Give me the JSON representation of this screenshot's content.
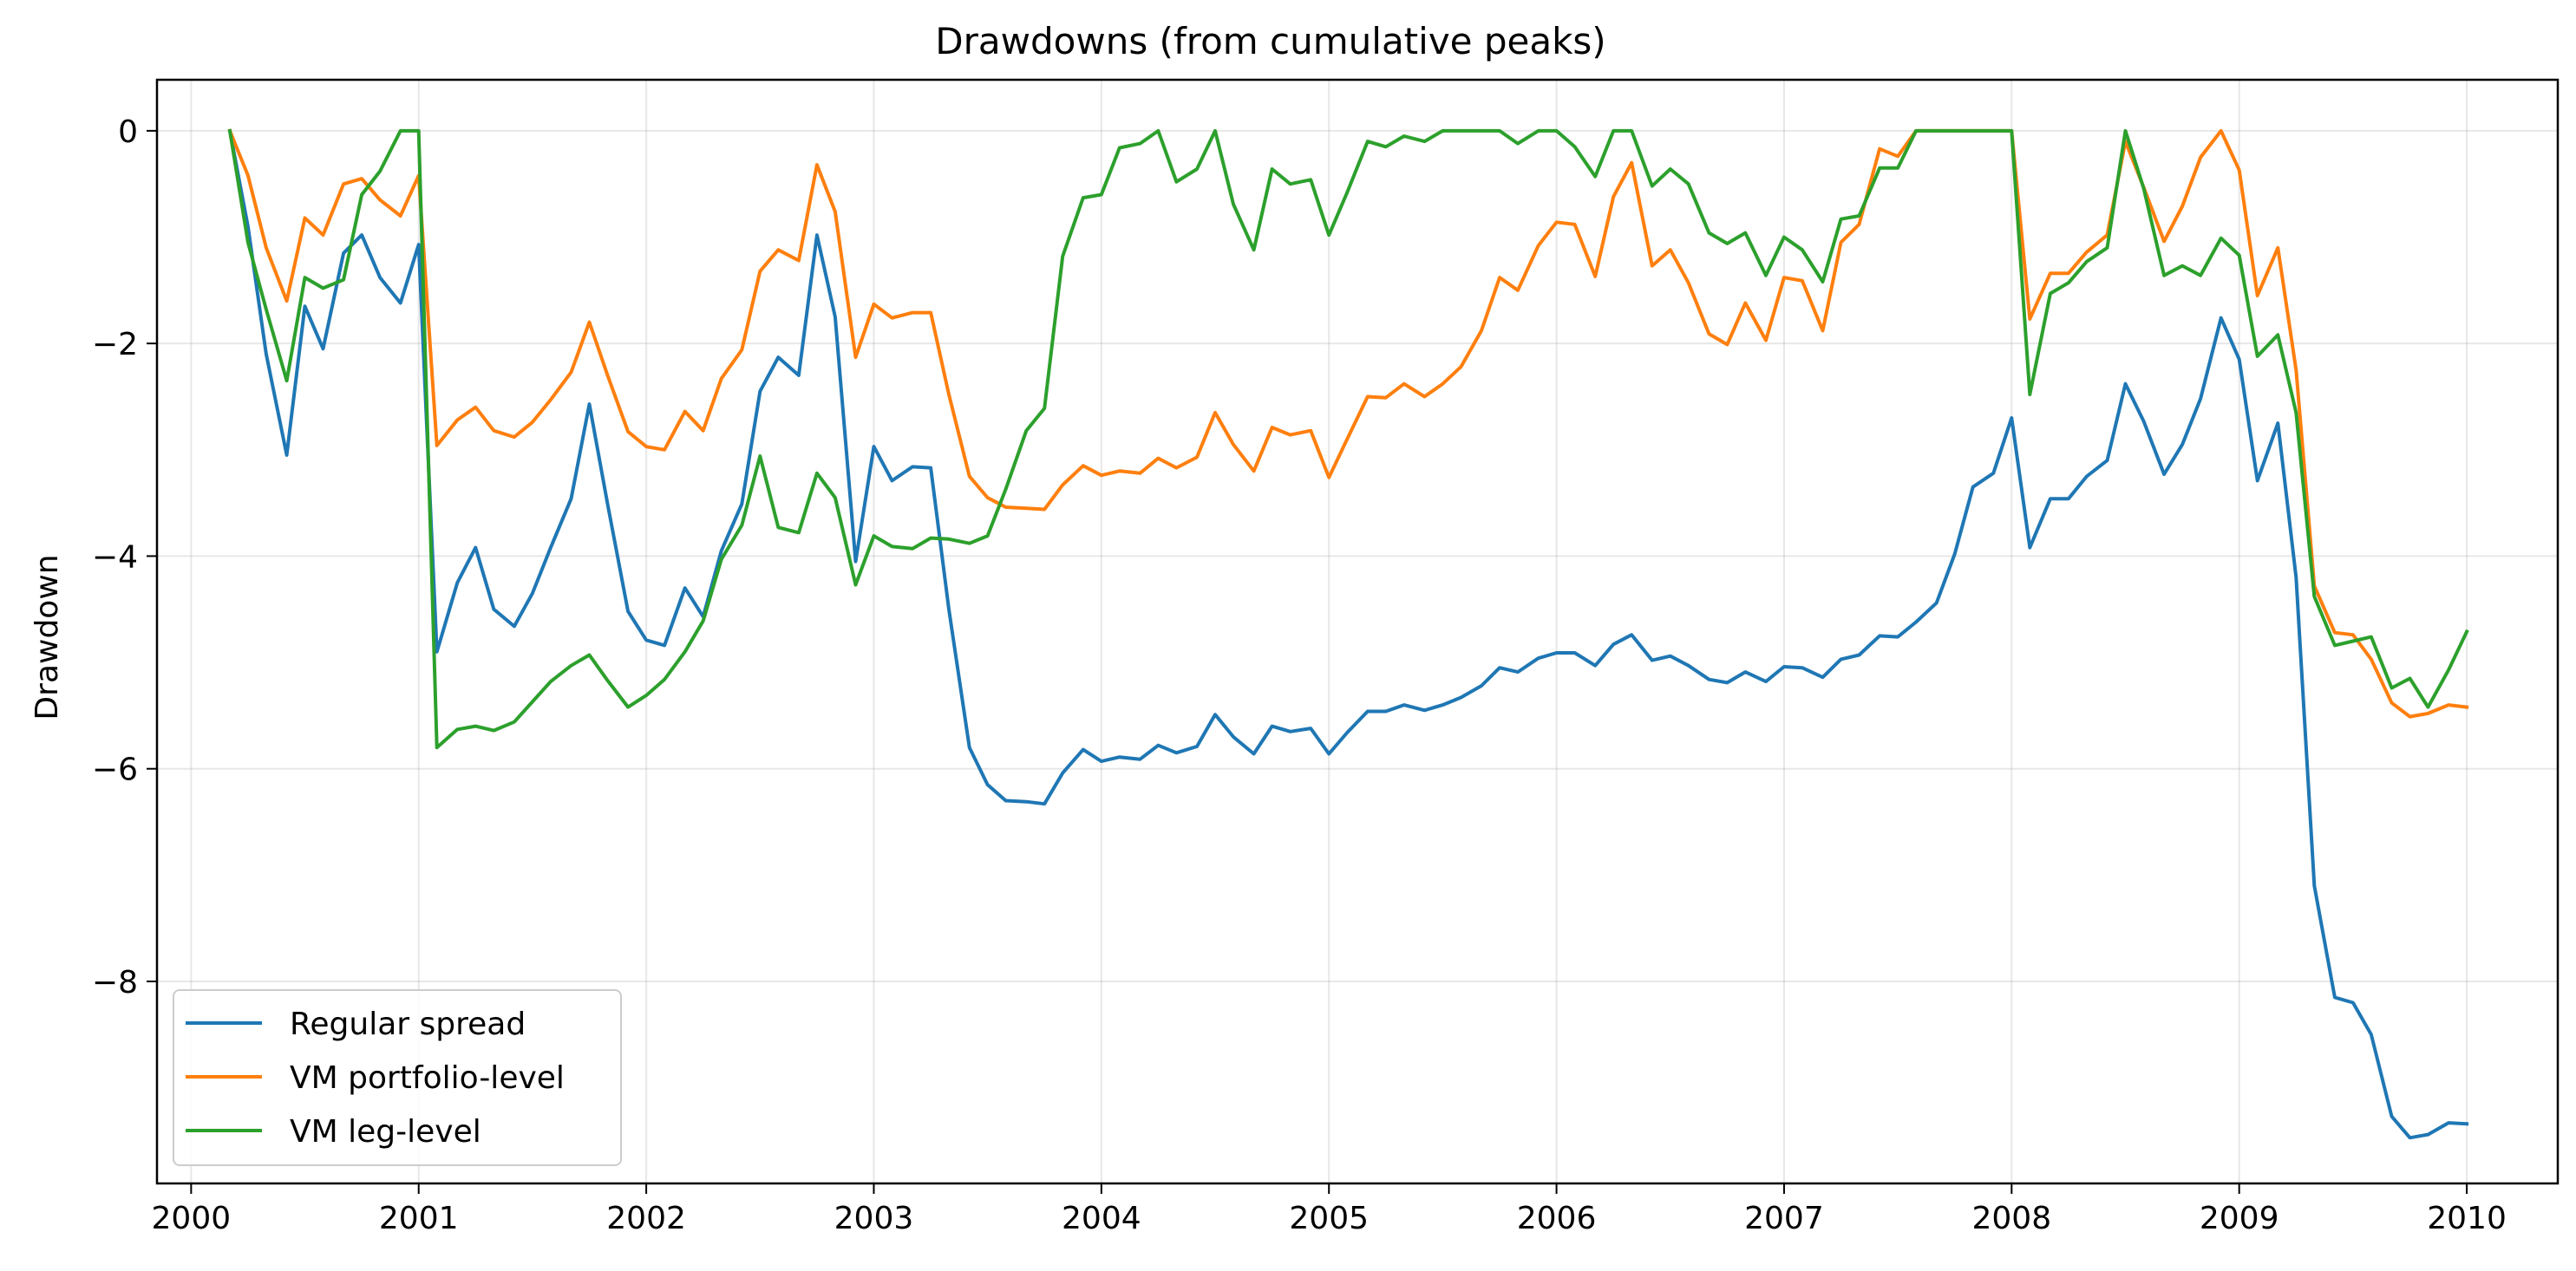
{
  "chart_data": {
    "type": "line",
    "title": "Drawdowns (from cumulative peaks)",
    "xlabel": "",
    "ylabel": "Drawdown",
    "xlim": [
      1999.85,
      2010.4
    ],
    "ylim": [
      -9.9,
      0.48
    ],
    "xticks": [
      2000,
      2001,
      2002,
      2003,
      2004,
      2005,
      2006,
      2007,
      2008,
      2009,
      2010
    ],
    "xtick_labels": [
      "2000",
      "2001",
      "2002",
      "2003",
      "2004",
      "2005",
      "2006",
      "2007",
      "2008",
      "2009",
      "2010"
    ],
    "yticks": [
      0,
      -2,
      -4,
      -6,
      -8
    ],
    "ytick_labels": [
      "0",
      "−2",
      "−4",
      "−6",
      "−8"
    ],
    "grid": true,
    "legend_position": "lower-left",
    "x": [
      2000.17,
      2000.25,
      2000.33,
      2000.42,
      2000.5,
      2000.58,
      2000.67,
      2000.75,
      2000.83,
      2000.92,
      2001.0,
      2001.08,
      2001.17,
      2001.25,
      2001.33,
      2001.42,
      2001.5,
      2001.58,
      2001.67,
      2001.75,
      2001.83,
      2001.92,
      2002.0,
      2002.08,
      2002.17,
      2002.25,
      2002.33,
      2002.42,
      2002.5,
      2002.58,
      2002.67,
      2002.75,
      2002.83,
      2002.92,
      2003.0,
      2003.08,
      2003.17,
      2003.25,
      2003.33,
      2003.42,
      2003.5,
      2003.58,
      2003.67,
      2003.75,
      2003.83,
      2003.92,
      2004.0,
      2004.08,
      2004.17,
      2004.25,
      2004.33,
      2004.42,
      2004.5,
      2004.58,
      2004.67,
      2004.75,
      2004.83,
      2004.92,
      2005.0,
      2005.08,
      2005.17,
      2005.25,
      2005.33,
      2005.42,
      2005.5,
      2005.58,
      2005.67,
      2005.75,
      2005.83,
      2005.92,
      2006.0,
      2006.08,
      2006.17,
      2006.25,
      2006.33,
      2006.42,
      2006.5,
      2006.58,
      2006.67,
      2006.75,
      2006.83,
      2006.92,
      2007.0,
      2007.08,
      2007.17,
      2007.25,
      2007.33,
      2007.42,
      2007.5,
      2007.58,
      2007.67,
      2007.75,
      2007.83,
      2007.92,
      2008.0,
      2008.08,
      2008.17,
      2008.25,
      2008.33,
      2008.42,
      2008.5,
      2008.58,
      2008.67,
      2008.75,
      2008.83,
      2008.92,
      2009.0,
      2009.08,
      2009.17,
      2009.25,
      2009.33,
      2009.42,
      2009.5,
      2009.58,
      2009.67,
      2009.75,
      2009.83,
      2009.92,
      2010.0
    ],
    "series": [
      {
        "name": "Regular spread",
        "color": "#1f77b4",
        "values": [
          0,
          -0.9,
          -2.1,
          -3.05,
          -1.65,
          -2.05,
          -1.15,
          -0.98,
          -1.38,
          -1.62,
          -1.07,
          -4.9,
          -4.25,
          -3.92,
          -4.5,
          -4.66,
          -4.35,
          -3.92,
          -3.46,
          -2.57,
          -3.51,
          -4.52,
          -4.79,
          -4.84,
          -4.3,
          -4.57,
          -3.95,
          -3.51,
          -2.45,
          -2.13,
          -2.3,
          -0.98,
          -1.75,
          -4.05,
          -2.97,
          -3.29,
          -3.16,
          -3.17,
          -4.5,
          -5.8,
          -6.15,
          -6.3,
          -6.31,
          -6.33,
          -6.04,
          -5.82,
          -5.93,
          -5.89,
          -5.91,
          -5.78,
          -5.85,
          -5.79,
          -5.49,
          -5.7,
          -5.86,
          -5.6,
          -5.65,
          -5.62,
          -5.86,
          -5.66,
          -5.46,
          -5.46,
          -5.4,
          -5.45,
          -5.4,
          -5.33,
          -5.22,
          -5.05,
          -5.09,
          -4.96,
          -4.91,
          -4.91,
          -5.03,
          -4.83,
          -4.74,
          -4.98,
          -4.94,
          -5.03,
          -5.16,
          -5.19,
          -5.09,
          -5.18,
          -5.04,
          -5.05,
          -5.14,
          -4.97,
          -4.93,
          -4.75,
          -4.76,
          -4.62,
          -4.44,
          -3.98,
          -3.35,
          -3.22,
          -2.7,
          -3.92,
          -3.46,
          -3.46,
          -3.25,
          -3.1,
          -2.38,
          -2.73,
          -3.23,
          -2.95,
          -2.52,
          -1.76,
          -2.15,
          -3.29,
          -2.75,
          -4.2,
          -7.1,
          -8.15,
          -8.2,
          -8.5,
          -9.27,
          -9.47,
          -9.44,
          -9.33,
          -9.34
        ]
      },
      {
        "name": "VM portfolio-level",
        "color": "#ff7f0e",
        "values": [
          0,
          -0.42,
          -1.1,
          -1.6,
          -0.82,
          -0.98,
          -0.5,
          -0.45,
          -0.65,
          -0.8,
          -0.42,
          -2.96,
          -2.72,
          -2.6,
          -2.82,
          -2.88,
          -2.74,
          -2.53,
          -2.27,
          -1.8,
          -2.3,
          -2.83,
          -2.97,
          -3.0,
          -2.64,
          -2.82,
          -2.33,
          -2.06,
          -1.32,
          -1.12,
          -1.22,
          -0.32,
          -0.76,
          -2.13,
          -1.63,
          -1.76,
          -1.71,
          -1.71,
          -2.48,
          -3.25,
          -3.45,
          -3.54,
          -3.55,
          -3.56,
          -3.33,
          -3.15,
          -3.24,
          -3.2,
          -3.22,
          -3.08,
          -3.17,
          -3.07,
          -2.65,
          -2.95,
          -3.2,
          -2.79,
          -2.86,
          -2.82,
          -3.26,
          -2.9,
          -2.5,
          -2.51,
          -2.38,
          -2.5,
          -2.38,
          -2.22,
          -1.88,
          -1.38,
          -1.5,
          -1.08,
          -0.86,
          -0.88,
          -1.37,
          -0.62,
          -0.3,
          -1.27,
          -1.12,
          -1.43,
          -1.91,
          -2.01,
          -1.62,
          -1.97,
          -1.38,
          -1.41,
          -1.88,
          -1.05,
          -0.88,
          -0.17,
          -0.24,
          0,
          0,
          0,
          0,
          0,
          0,
          -1.77,
          -1.34,
          -1.34,
          -1.14,
          -0.98,
          -0.1,
          -0.53,
          -1.04,
          -0.71,
          -0.25,
          0,
          -0.37,
          -1.55,
          -1.1,
          -2.25,
          -4.28,
          -4.72,
          -4.74,
          -4.97,
          -5.38,
          -5.51,
          -5.48,
          -5.4,
          -5.42
        ]
      },
      {
        "name": "VM leg-level",
        "color": "#2ca02c",
        "values": [
          0,
          -1.05,
          -1.68,
          -2.35,
          -1.38,
          -1.48,
          -1.4,
          -0.6,
          -0.38,
          0,
          0,
          -5.8,
          -5.63,
          -5.6,
          -5.64,
          -5.56,
          -5.37,
          -5.18,
          -5.03,
          -4.93,
          -5.17,
          -5.42,
          -5.31,
          -5.16,
          -4.9,
          -4.61,
          -4.03,
          -3.71,
          -3.06,
          -3.73,
          -3.78,
          -3.22,
          -3.45,
          -4.27,
          -3.81,
          -3.91,
          -3.93,
          -3.83,
          -3.84,
          -3.88,
          -3.81,
          -3.37,
          -2.82,
          -2.61,
          -1.18,
          -0.63,
          -0.6,
          -0.16,
          -0.12,
          0,
          -0.48,
          -0.36,
          0,
          -0.69,
          -1.12,
          -0.36,
          -0.5,
          -0.46,
          -0.98,
          -0.58,
          -0.1,
          -0.15,
          -0.05,
          -0.1,
          0,
          0,
          0,
          0,
          -0.12,
          0,
          0,
          -0.15,
          -0.43,
          0,
          0,
          -0.52,
          -0.36,
          -0.5,
          -0.96,
          -1.06,
          -0.96,
          -1.36,
          -1.0,
          -1.12,
          -1.42,
          -0.83,
          -0.8,
          -0.35,
          -0.35,
          0,
          0,
          0,
          0,
          0,
          0,
          -2.48,
          -1.53,
          -1.43,
          -1.23,
          -1.1,
          0,
          -0.54,
          -1.36,
          -1.27,
          -1.36,
          -1.01,
          -1.17,
          -2.12,
          -1.92,
          -2.65,
          -4.38,
          -4.84,
          -4.8,
          -4.76,
          -5.24,
          -5.15,
          -5.42,
          -5.07,
          -4.71
        ]
      }
    ]
  }
}
